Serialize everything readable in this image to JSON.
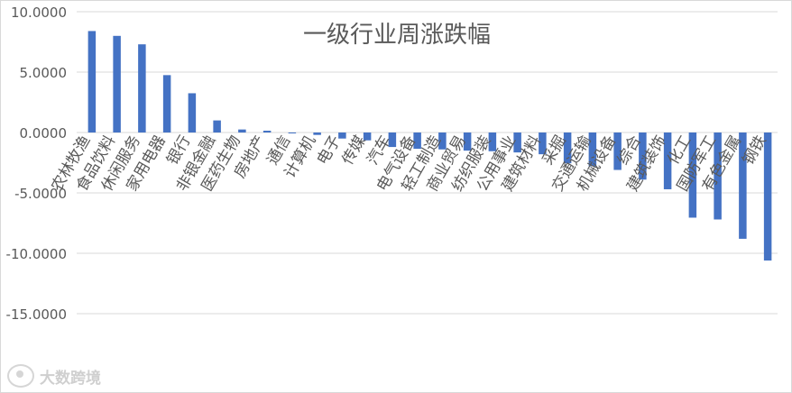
{
  "chart_data": {
    "type": "bar",
    "title": "一级行业周涨跌幅",
    "xlabel": "",
    "ylabel": "",
    "ylim": [
      -15,
      10
    ],
    "yticks": [
      10,
      5,
      0,
      -5,
      -10,
      -15
    ],
    "ytick_labels": [
      "10.0000",
      "5.0000",
      "0.0000",
      "-5.0000",
      "-10.0000",
      "-15.0000"
    ],
    "grid": true,
    "bar_color": "#4472C4",
    "categories": [
      "农林牧渔",
      "食品饮料",
      "休闲服务",
      "家用电器",
      "银行",
      "非银金融",
      "医药生物",
      "房地产",
      "通信",
      "计算机",
      "电子",
      "传媒",
      "汽车",
      "电气设备",
      "轻工制造",
      "商业贸易",
      "纺织服装",
      "公用事业",
      "建筑材料",
      "采掘",
      "交通运输",
      "机械设备",
      "综合",
      "建筑装饰",
      "化工",
      "国防军工",
      "有色金属",
      "钢铁"
    ],
    "values": [
      8.4,
      8.0,
      7.3,
      4.75,
      3.25,
      1.0,
      0.25,
      0.15,
      -0.05,
      -0.2,
      -0.5,
      -0.65,
      -1.2,
      -1.35,
      -1.4,
      -1.5,
      -1.55,
      -1.65,
      -1.8,
      -2.55,
      -2.8,
      -3.1,
      -3.9,
      -4.7,
      -7.05,
      -7.2,
      -8.8,
      -10.6
    ]
  },
  "watermark": {
    "text": "大数跨境"
  }
}
